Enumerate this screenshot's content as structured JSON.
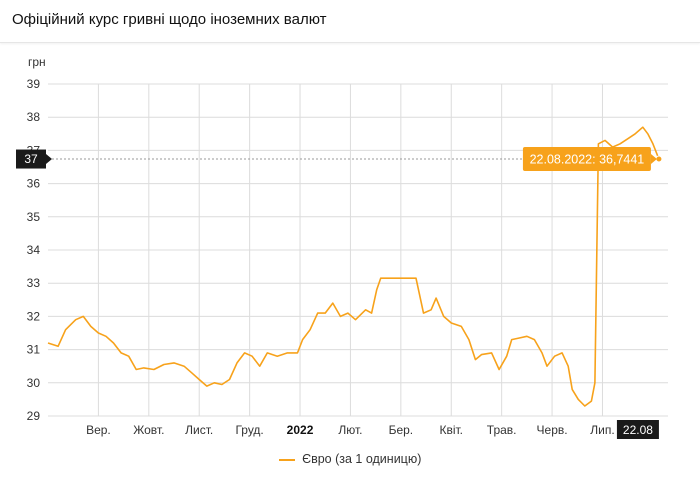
{
  "page": {
    "title": "Офіційний курс гривні щодо іноземних валют"
  },
  "colors": {
    "series": "#f7a21b",
    "badge_bg": "#1a1a1a",
    "grid": "#dcdcdc"
  },
  "chart_data": {
    "type": "line",
    "ylabel": "грн",
    "ylim": [
      29,
      39
    ],
    "yticks": [
      29,
      30,
      31,
      32,
      33,
      34,
      35,
      36,
      37,
      38,
      39
    ],
    "x_tick_labels": [
      {
        "label": "Вер.",
        "month": 1
      },
      {
        "label": "Жовт.",
        "month": 2
      },
      {
        "label": "Лист.",
        "month": 3
      },
      {
        "label": "Груд.",
        "month": 4
      },
      {
        "label": "2022",
        "month": 5,
        "bold": true
      },
      {
        "label": "Лют.",
        "month": 6
      },
      {
        "label": "Бер.",
        "month": 7
      },
      {
        "label": "Квіт.",
        "month": 8
      },
      {
        "label": "Трав.",
        "month": 9
      },
      {
        "label": "Черв.",
        "month": 10
      },
      {
        "label": "Лип.",
        "month": 11
      }
    ],
    "xlim_month": [
      0,
      12.3
    ],
    "series": [
      {
        "name": "Євро (за 1 одиницю)",
        "points": [
          [
            0.0,
            31.2
          ],
          [
            0.2,
            31.1
          ],
          [
            0.35,
            31.6
          ],
          [
            0.55,
            31.9
          ],
          [
            0.7,
            32.0
          ],
          [
            0.85,
            31.7
          ],
          [
            1.0,
            31.5
          ],
          [
            1.15,
            31.4
          ],
          [
            1.3,
            31.2
          ],
          [
            1.45,
            30.9
          ],
          [
            1.6,
            30.8
          ],
          [
            1.75,
            30.4
          ],
          [
            1.9,
            30.45
          ],
          [
            2.1,
            30.4
          ],
          [
            2.3,
            30.55
          ],
          [
            2.5,
            30.6
          ],
          [
            2.7,
            30.5
          ],
          [
            2.85,
            30.3
          ],
          [
            3.0,
            30.1
          ],
          [
            3.15,
            29.9
          ],
          [
            3.3,
            30.0
          ],
          [
            3.45,
            29.95
          ],
          [
            3.6,
            30.1
          ],
          [
            3.75,
            30.6
          ],
          [
            3.9,
            30.9
          ],
          [
            4.05,
            30.8
          ],
          [
            4.2,
            30.5
          ],
          [
            4.35,
            30.9
          ],
          [
            4.55,
            30.8
          ],
          [
            4.75,
            30.9
          ],
          [
            4.95,
            30.9
          ],
          [
            5.05,
            31.3
          ],
          [
            5.2,
            31.6
          ],
          [
            5.35,
            32.1
          ],
          [
            5.5,
            32.1
          ],
          [
            5.65,
            32.4
          ],
          [
            5.8,
            32.0
          ],
          [
            5.95,
            32.1
          ],
          [
            6.1,
            31.9
          ],
          [
            6.3,
            32.2
          ],
          [
            6.42,
            32.1
          ],
          [
            6.52,
            32.8
          ],
          [
            6.6,
            33.15
          ],
          [
            7.3,
            33.15
          ],
          [
            7.45,
            32.1
          ],
          [
            7.6,
            32.2
          ],
          [
            7.7,
            32.55
          ],
          [
            7.85,
            32.0
          ],
          [
            8.0,
            31.8
          ],
          [
            8.2,
            31.7
          ],
          [
            8.35,
            31.3
          ],
          [
            8.48,
            30.7
          ],
          [
            8.6,
            30.85
          ],
          [
            8.8,
            30.9
          ],
          [
            8.95,
            30.4
          ],
          [
            9.1,
            30.8
          ],
          [
            9.2,
            31.3
          ],
          [
            9.35,
            31.35
          ],
          [
            9.5,
            31.4
          ],
          [
            9.65,
            31.3
          ],
          [
            9.8,
            30.9
          ],
          [
            9.9,
            30.5
          ],
          [
            10.05,
            30.8
          ],
          [
            10.2,
            30.9
          ],
          [
            10.32,
            30.5
          ],
          [
            10.4,
            29.8
          ],
          [
            10.52,
            29.5
          ],
          [
            10.65,
            29.3
          ],
          [
            10.78,
            29.45
          ],
          [
            10.85,
            30.0
          ],
          [
            10.92,
            37.2
          ],
          [
            11.05,
            37.3
          ],
          [
            11.2,
            37.1
          ],
          [
            11.35,
            37.2
          ],
          [
            11.5,
            37.35
          ],
          [
            11.65,
            37.5
          ],
          [
            11.8,
            37.7
          ],
          [
            11.9,
            37.5
          ],
          [
            12.0,
            37.2
          ],
          [
            12.12,
            36.74
          ]
        ]
      }
    ],
    "crosshair": {
      "y_label": "37",
      "tooltip": "22.08.2022: 36,7441",
      "x_label": "22.08"
    }
  }
}
